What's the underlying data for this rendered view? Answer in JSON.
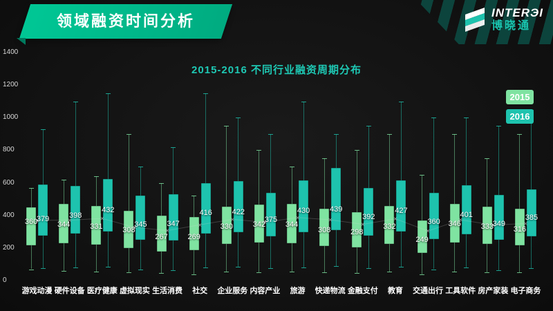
{
  "header": {
    "title": "领域融资时间分析"
  },
  "brand": {
    "name": "INTERЭI",
    "cn": "博晓通"
  },
  "legend": [
    {
      "label": "2015",
      "color": "#7FE3A1"
    },
    {
      "label": "2016",
      "color": "#1EC3AE"
    }
  ],
  "colors": {
    "background": "#121212",
    "banner_green": "#00BD8C",
    "subtitle_teal": "#1EC8B4",
    "series_2015": "#7FE3A1",
    "series_2016": "#1EC3AE",
    "axis_text": "#D9D9D9",
    "label_text": "#FFFFFF"
  },
  "chart_data": {
    "type": "boxplot",
    "title": "2015-2016 不同行业融资周期分布",
    "categories": [
      "游戏动漫",
      "硬件设备",
      "医疗健康",
      "虚拟现实",
      "生活消费",
      "社交",
      "企业服务",
      "内容产业",
      "旅游",
      "快递物流",
      "金融支付",
      "教育",
      "交通出行",
      "工具软件",
      "房产家装",
      "电子商务"
    ],
    "ylim": [
      0,
      1400
    ],
    "yticks": [
      0,
      200,
      400,
      600,
      800,
      1000,
      1200,
      1400
    ],
    "grid": false,
    "legend_position": "top-right",
    "box_format": [
      "min",
      "q1",
      "median",
      "q3",
      "max"
    ],
    "series": [
      {
        "name": "2015",
        "color": "#7FE3A1",
        "medians": [
          360,
          344,
          331,
          308,
          267,
          269,
          330,
          342,
          344,
          308,
          298,
          332,
          249,
          346,
          333,
          316
        ],
        "boxes": [
          [
            70,
            215,
            360,
            450,
            570
          ],
          [
            60,
            230,
            344,
            470,
            620
          ],
          [
            55,
            220,
            331,
            460,
            640
          ],
          [
            50,
            200,
            308,
            430,
            900
          ],
          [
            45,
            180,
            267,
            400,
            600
          ],
          [
            40,
            185,
            269,
            390,
            520
          ],
          [
            55,
            225,
            330,
            455,
            950
          ],
          [
            50,
            235,
            342,
            465,
            800
          ],
          [
            55,
            230,
            344,
            470,
            700
          ],
          [
            50,
            210,
            308,
            440,
            750
          ],
          [
            45,
            205,
            298,
            420,
            800
          ],
          [
            55,
            225,
            332,
            460,
            900
          ],
          [
            40,
            170,
            249,
            370,
            650
          ],
          [
            55,
            235,
            346,
            470,
            900
          ],
          [
            50,
            225,
            333,
            455,
            750
          ],
          [
            50,
            215,
            316,
            440,
            900
          ]
        ]
      },
      {
        "name": "2016",
        "color": "#1EC3AE",
        "medians": [
          379,
          398,
          432,
          345,
          347,
          416,
          422,
          375,
          430,
          439,
          392,
          427,
          360,
          401,
          349,
          385
        ],
        "boxes": [
          [
            75,
            275,
            379,
            590,
            930
          ],
          [
            80,
            290,
            398,
            580,
            1100
          ],
          [
            85,
            300,
            432,
            625,
            1150
          ],
          [
            70,
            250,
            345,
            520,
            700
          ],
          [
            65,
            245,
            347,
            530,
            820
          ],
          [
            80,
            290,
            416,
            600,
            1150
          ],
          [
            85,
            295,
            422,
            610,
            1000
          ],
          [
            75,
            270,
            375,
            540,
            900
          ],
          [
            80,
            295,
            430,
            615,
            1100
          ],
          [
            90,
            310,
            439,
            690,
            900
          ],
          [
            75,
            275,
            392,
            570,
            950
          ],
          [
            85,
            300,
            427,
            615,
            1100
          ],
          [
            70,
            255,
            360,
            540,
            1000
          ],
          [
            80,
            285,
            401,
            585,
            1000
          ],
          [
            65,
            250,
            349,
            525,
            950
          ],
          [
            75,
            270,
            385,
            560,
            1050
          ]
        ]
      }
    ]
  }
}
